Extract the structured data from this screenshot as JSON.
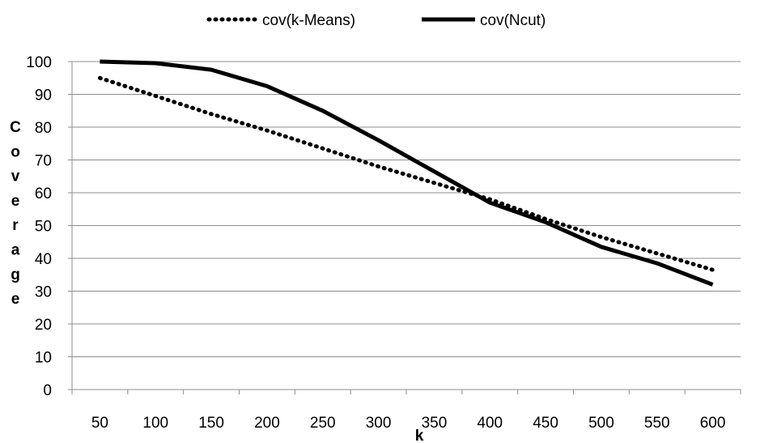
{
  "chart_data": {
    "type": "line",
    "x": [
      50,
      100,
      150,
      200,
      250,
      300,
      350,
      400,
      450,
      500,
      550,
      600
    ],
    "series": [
      {
        "name": "cov(k-Means)",
        "style": "dotted",
        "color": "#000000",
        "values": [
          95,
          89.5,
          84,
          79,
          73.5,
          68,
          63,
          58,
          52,
          46.5,
          41.5,
          36.5
        ]
      },
      {
        "name": "cov(Ncut)",
        "style": "solid",
        "color": "#000000",
        "values": [
          100,
          99.5,
          97.5,
          92.5,
          85,
          76,
          66.5,
          57,
          51,
          43.5,
          38.5,
          32
        ]
      }
    ],
    "xlabel": "k",
    "ylabel": "Coverage",
    "ylim": [
      0,
      100
    ],
    "yticks": [
      0,
      10,
      20,
      30,
      40,
      50,
      60,
      70,
      80,
      90,
      100
    ],
    "xticks": [
      "50",
      "100",
      "150",
      "200",
      "250",
      "300",
      "350",
      "400",
      "450",
      "500",
      "550",
      "600"
    ],
    "grid": "horizontal",
    "legend_position": "top"
  }
}
